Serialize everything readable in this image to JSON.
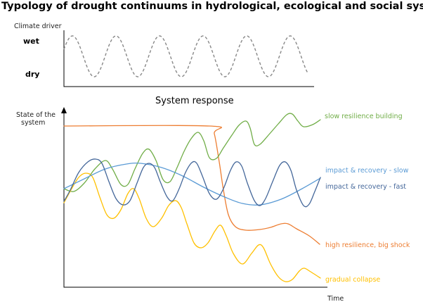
{
  "title": "Typology of drought continuums in hydrological, ecological and social systems",
  "driver_panel": {
    "ylabel": "Climate driver",
    "wet_label": "wet",
    "dry_label": "dry",
    "line_color": "#888888"
  },
  "response_panel": {
    "subtitle": "System response",
    "ylabel_line1": "State of the",
    "ylabel_line2": "system",
    "xlabel": "Time"
  },
  "series": [
    {
      "key": "slow_resilience",
      "label": "slow resilience building",
      "color": "#70AD47"
    },
    {
      "key": "impact_slow",
      "label": "impact & recovery - slow",
      "color": "#5B9BD5"
    },
    {
      "key": "impact_fast",
      "label": "impact & recovery - fast",
      "color": "#44679A"
    },
    {
      "key": "high_resilience",
      "label": "high resilience, big shock",
      "color": "#ED7D31"
    },
    {
      "key": "gradual_collapse",
      "label": "gradual collapse",
      "color": "#FFC000"
    }
  ]
}
